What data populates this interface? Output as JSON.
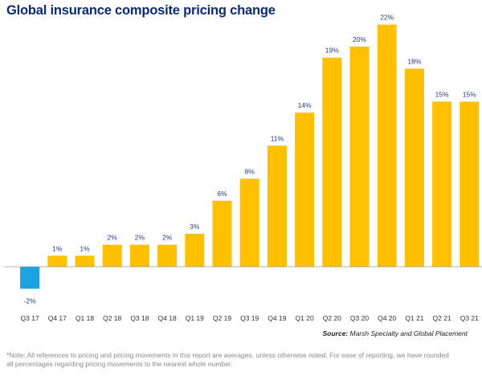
{
  "chart_data": {
    "type": "bar",
    "title": "Global insurance composite pricing change",
    "categories": [
      "Q3 17",
      "Q4 17",
      "Q1 18",
      "Q2 18",
      "Q3 18",
      "Q4 18",
      "Q1 19",
      "Q2 19",
      "Q3 19",
      "Q4 19",
      "Q1 20",
      "Q2 20",
      "Q3 20",
      "Q4 20",
      "Q1 21",
      "Q2 21",
      "Q3 21"
    ],
    "values": [
      -2,
      1,
      1,
      2,
      2,
      2,
      3,
      6,
      8,
      11,
      14,
      19,
      20,
      22,
      18,
      15,
      15
    ],
    "data_labels": [
      "-2%",
      "1%",
      "1%",
      "2%",
      "2%",
      "2%",
      "3%",
      "6%",
      "8%",
      "11%",
      "14%",
      "19%",
      "20%",
      "22%",
      "18%",
      "15%",
      "15%"
    ],
    "unit": "%",
    "xlabel": "",
    "ylabel": "",
    "ylim": [
      -3,
      23
    ],
    "grid": false,
    "colors": {
      "positive": "#ffc000",
      "negative": "#1ba2e0",
      "label": "#1f3b8f",
      "axis": "#999999"
    }
  },
  "source": {
    "label": "Source:",
    "text": "Marsh Specialty and Global Placement"
  },
  "note": "*Note: All references to pricing and pricing movements in this report are averages, unless otherwise noted. For ease of reporting, we have rounded all percentages regarding pricing movements to the nearest whole number."
}
